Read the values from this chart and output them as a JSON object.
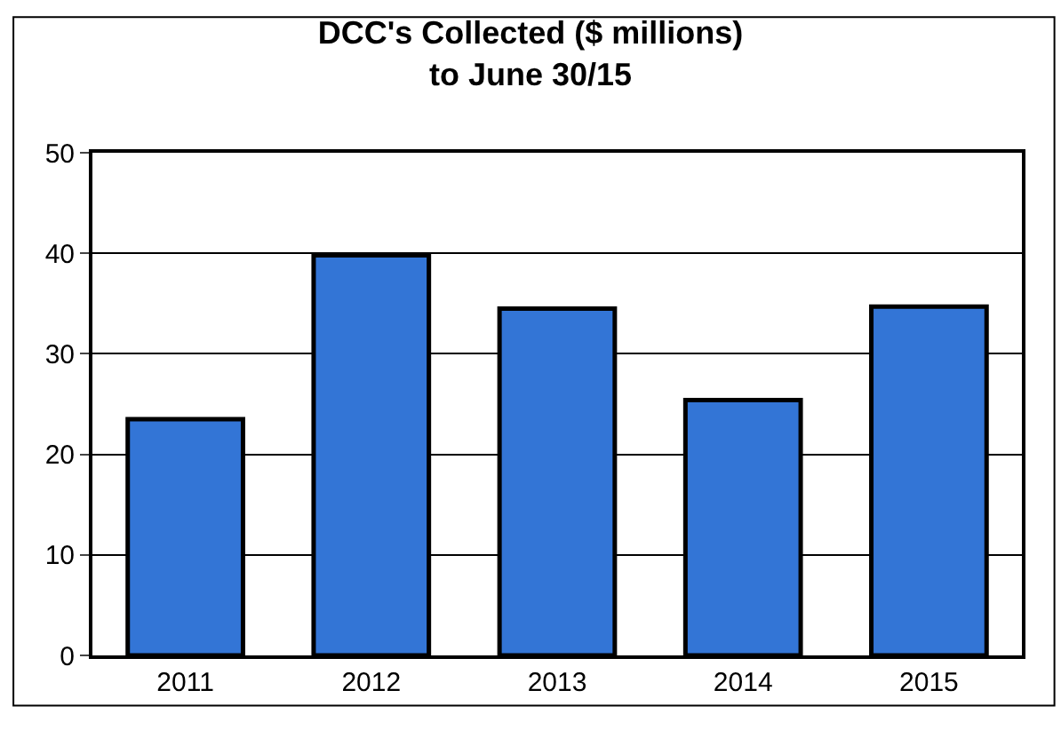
{
  "chart_data": {
    "type": "bar",
    "title": "DCC's Collected ($ millions)\nto June 30/15",
    "categories": [
      "2011",
      "2012",
      "2013",
      "2014",
      "2015"
    ],
    "values": [
      23.5,
      39.8,
      34.5,
      25.4,
      34.7
    ],
    "color": "#3375d6",
    "ylim": [
      0,
      50
    ],
    "yticks": [
      0,
      10,
      20,
      30,
      40,
      50
    ],
    "grid": "y"
  }
}
